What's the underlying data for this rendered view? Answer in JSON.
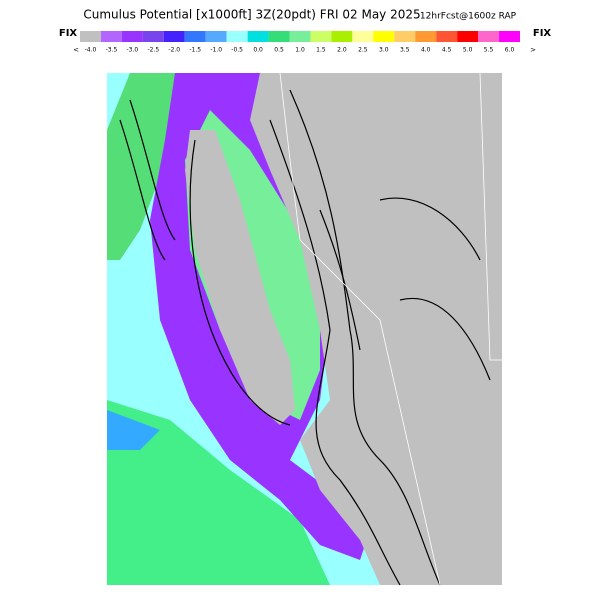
{
  "header": {
    "title": "Cumulus Potential [x1000ft] 3Z(20pdt) FRI 02 May 2025",
    "subtitle": "12hrFcst@1600z RAP"
  },
  "legend": {
    "left": "FIX",
    "right": "FIX",
    "less": "<",
    "more": ">",
    "labels": [
      "-4.0",
      "-3.5",
      "-3.0",
      "-2.5",
      "-2.0",
      "-1.5",
      "-1.0",
      "-0.5",
      "0.0",
      "0.5",
      "1.0",
      "1.5",
      "2.0",
      "2.5",
      "3.0",
      "3.5",
      "4.0",
      "4.5",
      "5.0",
      "5.5",
      "6.0"
    ],
    "colors": [
      "#c0c0c0",
      "#b266ff",
      "#9933ff",
      "#7744ee",
      "#4422ff",
      "#3377ff",
      "#55aaff",
      "#99ffff",
      "#00e0e0",
      "#33dd77",
      "#77ee99",
      "#ccff66",
      "#aaee00",
      "#ffff99",
      "#ffff00",
      "#ffcc66",
      "#ff9933",
      "#ff5533",
      "#ff0000",
      "#ff66cc",
      "#ff00ff"
    ]
  }
}
